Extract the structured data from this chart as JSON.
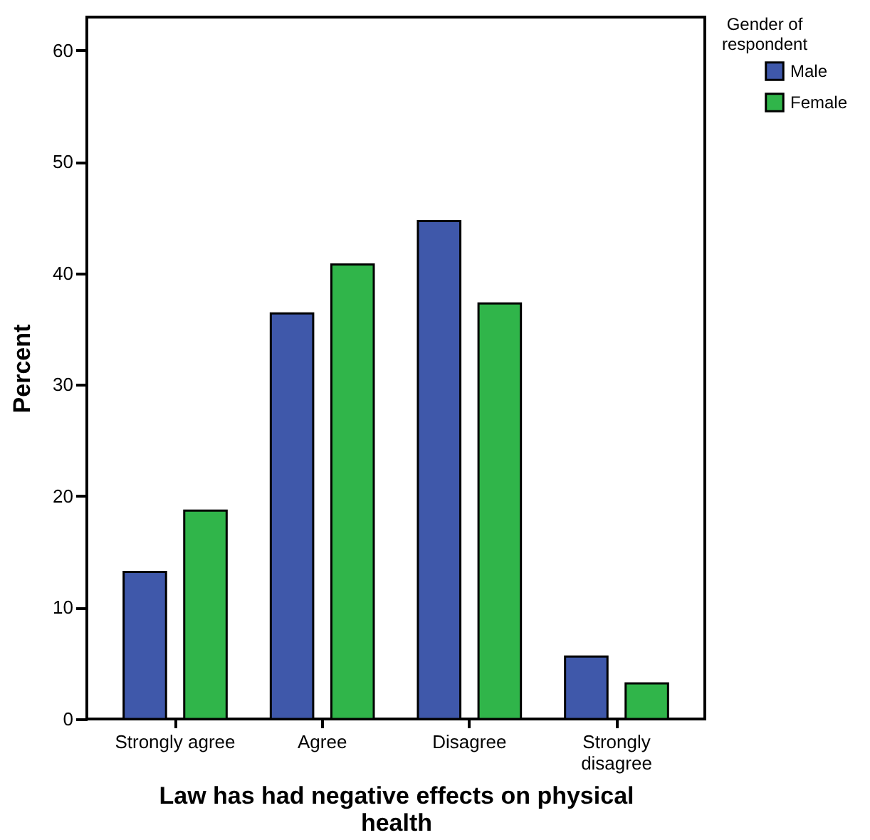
{
  "chart_data": {
    "type": "bar",
    "xlabel": "Law has had negative effects on physical health",
    "ylabel": "Percent",
    "legend_title": "Gender of respondent",
    "categories": [
      "Strongly agree",
      "Agree",
      "Disagree",
      "Strongly disagree"
    ],
    "series": [
      {
        "name": "Male",
        "color": "#3f58aa",
        "values": [
          13.2,
          36.4,
          44.7,
          5.6
        ]
      },
      {
        "name": "Female",
        "color": "#30b54a",
        "values": [
          18.7,
          40.8,
          37.3,
          3.2
        ]
      }
    ],
    "ylim": [
      0,
      63
    ],
    "yticks": [
      0,
      10,
      20,
      30,
      40,
      50,
      60
    ],
    "grid": false,
    "legend": "top right"
  }
}
